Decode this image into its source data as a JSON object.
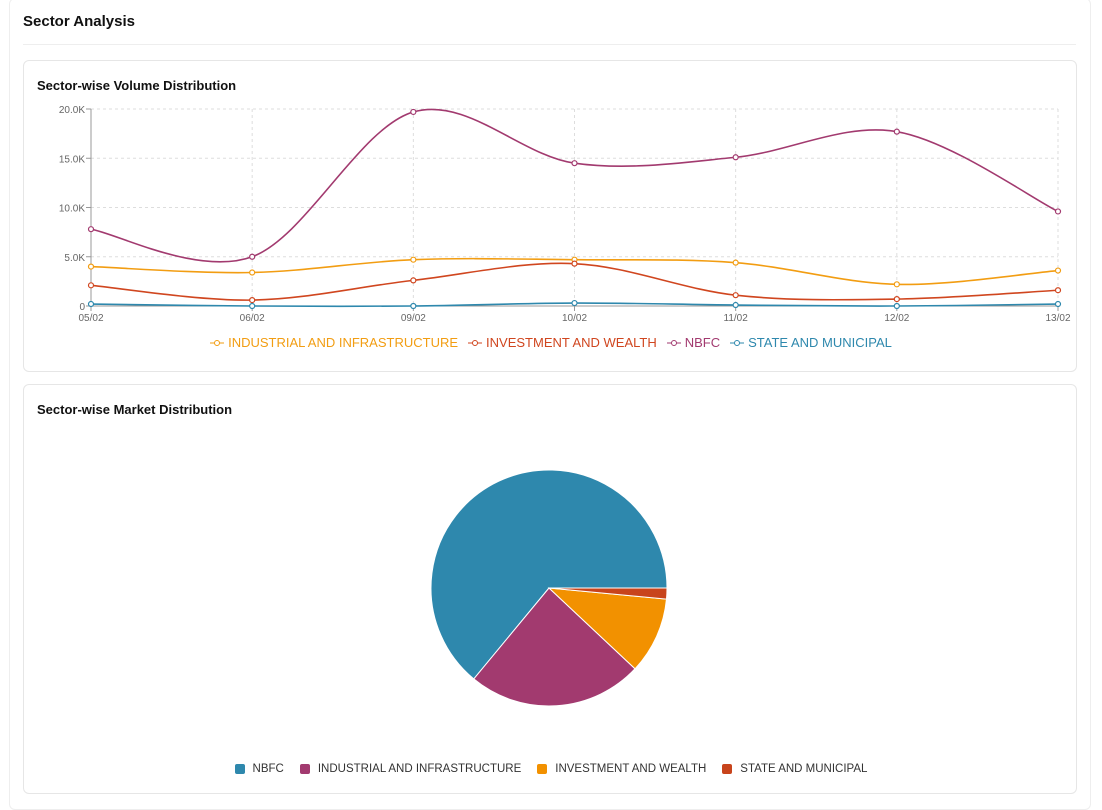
{
  "page_title": "Sector Analysis",
  "chart_data": [
    {
      "type": "line",
      "title": "Sector-wise Volume Distribution",
      "x": [
        "05/02",
        "06/02",
        "09/02",
        "10/02",
        "11/02",
        "12/02",
        "13/02"
      ],
      "yticks": [
        "0",
        "5.0K",
        "10.0K",
        "15.0K",
        "20.0K"
      ],
      "ylim": [
        0,
        20000
      ],
      "grid": true,
      "legend": "bottom",
      "series": [
        {
          "name": "INDUSTRIAL AND INFRASTRUCTURE",
          "color": "#f29d12",
          "values": [
            4000,
            3400,
            4700,
            4700,
            4400,
            2200,
            3600
          ]
        },
        {
          "name": "INVESTMENT AND WEALTH",
          "color": "#d0461f",
          "values": [
            2100,
            600,
            2600,
            4300,
            1100,
            700,
            1600
          ]
        },
        {
          "name": "NBFC",
          "color": "#a23a6f",
          "values": [
            7800,
            5000,
            19700,
            14500,
            15100,
            17700,
            9600
          ]
        },
        {
          "name": "STATE AND MUNICIPAL",
          "color": "#2e88ad",
          "values": [
            200,
            0,
            0,
            300,
            100,
            0,
            200
          ]
        }
      ]
    },
    {
      "type": "pie",
      "title": "Sector-wise Market Distribution",
      "legend": "bottom",
      "slices": [
        {
          "name": "NBFC",
          "color": "#2e88ad",
          "value": 64
        },
        {
          "name": "INDUSTRIAL AND INFRASTRUCTURE",
          "color": "#a23a6f",
          "value": 24
        },
        {
          "name": "INVESTMENT AND WEALTH",
          "color": "#f29100",
          "value": 10.5
        },
        {
          "name": "STATE AND MUNICIPAL",
          "color": "#c8441c",
          "value": 1.5
        }
      ]
    }
  ]
}
